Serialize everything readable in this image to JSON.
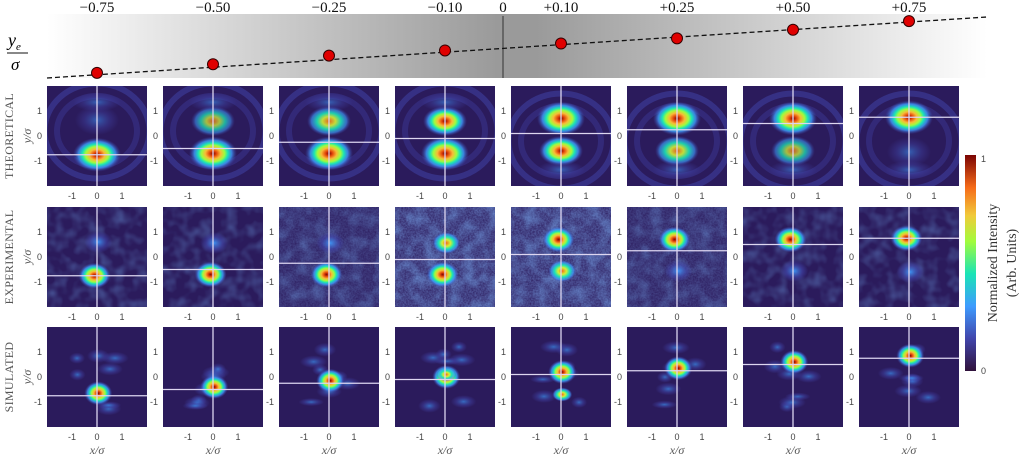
{
  "chart_data": {
    "type": "heatmap",
    "top_axis_label_numerator": "y",
    "top_axis_label_sub": "e",
    "top_axis_label_denominator": "σ",
    "zero_label": "0",
    "columns": [
      {
        "label": "−0.75",
        "ye": -0.75
      },
      {
        "label": "−0.50",
        "ye": -0.5
      },
      {
        "label": "−0.25",
        "ye": -0.25
      },
      {
        "label": "−0.10",
        "ye": -0.1
      },
      {
        "label": "+0.10",
        "ye": 0.1
      },
      {
        "label": "+0.25",
        "ye": 0.25
      },
      {
        "label": "+0.50",
        "ye": 0.5
      },
      {
        "label": "+0.75",
        "ye": 0.75
      }
    ],
    "rows": [
      {
        "label": "THEORETICAL",
        "kind": "theory"
      },
      {
        "label": "EXPERIMENTAL",
        "kind": "experiment"
      },
      {
        "label": "SIMULATED",
        "kind": "simulation"
      }
    ],
    "xlabel": "x/σ",
    "ylabel": "y/σ",
    "x_ticks": [
      "-1",
      "0",
      "1"
    ],
    "y_ticks": [
      "1",
      "0",
      "-1"
    ],
    "xlim": [
      -2,
      2
    ],
    "ylim": [
      -2,
      2
    ],
    "colorbar": {
      "label_line1": "Normalized Intensity",
      "label_line2": "(Arb. Units)",
      "max_label": "1",
      "min_label": "0",
      "range": [
        0,
        1
      ],
      "colormap": "turbo"
    },
    "colors": {
      "marker": "#e00000",
      "background": "#2b1b5c"
    }
  }
}
